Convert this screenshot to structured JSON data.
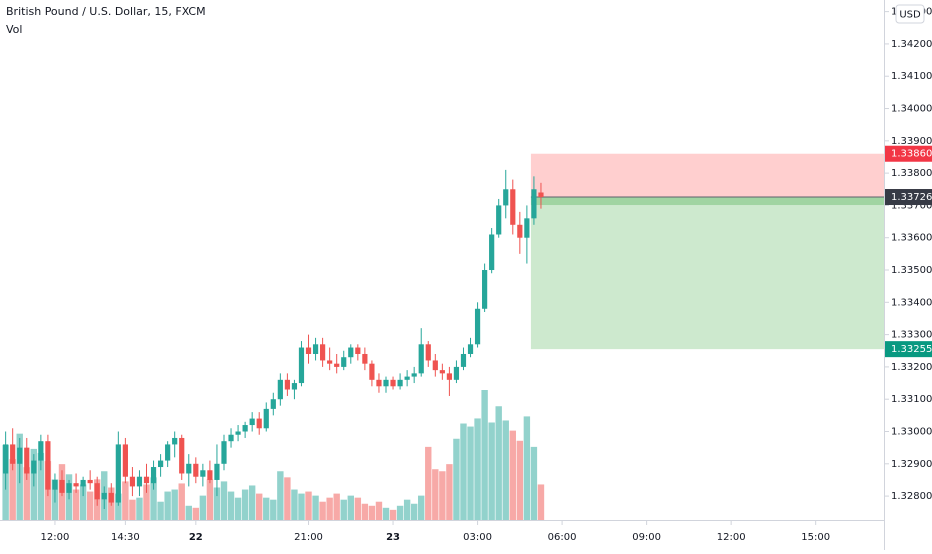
{
  "chart_data": {
    "type": "candlestick",
    "title": "British Pound / U.S. Dollar, 15, FXCM",
    "volume_label": "Vol",
    "currency_button": "USD",
    "up_color": "#26a69a",
    "down_color": "#ef5350",
    "ylim": [
      1.32726,
      1.34336
    ],
    "yticks": [
      {
        "value": 1.328,
        "label": "1.32800"
      },
      {
        "value": 1.329,
        "label": "1.32900"
      },
      {
        "value": 1.33,
        "label": "1.33000"
      },
      {
        "value": 1.331,
        "label": "1.33100"
      },
      {
        "value": 1.332,
        "label": "1.33200"
      },
      {
        "value": 1.333,
        "label": "1.33300"
      },
      {
        "value": 1.334,
        "label": "1.33400"
      },
      {
        "value": 1.335,
        "label": "1.33500"
      },
      {
        "value": 1.336,
        "label": "1.33600"
      },
      {
        "value": 1.337,
        "label": "1.33700"
      },
      {
        "value": 1.338,
        "label": "1.33800"
      },
      {
        "value": 1.339,
        "label": "1.33900"
      },
      {
        "value": 1.34,
        "label": "1.34000"
      },
      {
        "value": 1.341,
        "label": "1.34100"
      },
      {
        "value": 1.342,
        "label": "1.34200"
      },
      {
        "value": 1.343,
        "label": "1.34300"
      }
    ],
    "xlim": [
      -0.8,
      124.7
    ],
    "xticks": [
      {
        "value": 7,
        "label": "12:00"
      },
      {
        "value": 17,
        "label": "14:30"
      },
      {
        "value": 27,
        "label": "22"
      },
      {
        "value": 43,
        "label": "21:00"
      },
      {
        "value": 55,
        "label": "23"
      },
      {
        "value": 67,
        "label": "03:00"
      },
      {
        "value": 79,
        "label": "06:00"
      },
      {
        "value": 91,
        "label": "09:00"
      },
      {
        "value": 103,
        "label": "12:00"
      },
      {
        "value": 115,
        "label": "15:00"
      }
    ],
    "ohlc": [
      [
        1.3287,
        1.33,
        1.3282,
        1.3296
      ],
      [
        1.3296,
        1.3301,
        1.3288,
        1.329
      ],
      [
        1.329,
        1.3298,
        1.3284,
        1.3295
      ],
      [
        1.3295,
        1.3298,
        1.3285,
        1.3287
      ],
      [
        1.3287,
        1.3293,
        1.3283,
        1.3291
      ],
      [
        1.3291,
        1.3299,
        1.3288,
        1.3297
      ],
      [
        1.3297,
        1.3299,
        1.328,
        1.3282
      ],
      [
        1.3282,
        1.3287,
        1.3278,
        1.3285
      ],
      [
        1.3285,
        1.3288,
        1.328,
        1.3281
      ],
      [
        1.3281,
        1.3285,
        1.3279,
        1.3284
      ],
      [
        1.3284,
        1.3287,
        1.3281,
        1.3283
      ],
      [
        1.3283,
        1.3286,
        1.328,
        1.3285
      ],
      [
        1.3285,
        1.3288,
        1.3282,
        1.3284
      ],
      [
        1.3284,
        1.3286,
        1.3277,
        1.3279
      ],
      [
        1.3279,
        1.3283,
        1.3276,
        1.3281
      ],
      [
        1.3281,
        1.3284,
        1.3277,
        1.3278
      ],
      [
        1.3278,
        1.33,
        1.3277,
        1.3296
      ],
      [
        1.3296,
        1.3298,
        1.3284,
        1.3286
      ],
      [
        1.3286,
        1.3289,
        1.328,
        1.3283
      ],
      [
        1.3283,
        1.3288,
        1.328,
        1.3286
      ],
      [
        1.3286,
        1.329,
        1.3281,
        1.3284
      ],
      [
        1.3284,
        1.3291,
        1.3282,
        1.3289
      ],
      [
        1.3289,
        1.3293,
        1.3286,
        1.3291
      ],
      [
        1.3291,
        1.3297,
        1.3289,
        1.3296
      ],
      [
        1.3296,
        1.33,
        1.3292,
        1.3298
      ],
      [
        1.3298,
        1.3299,
        1.3285,
        1.3287
      ],
      [
        1.3287,
        1.3293,
        1.3283,
        1.329
      ],
      [
        1.329,
        1.3292,
        1.3284,
        1.3286
      ],
      [
        1.3286,
        1.329,
        1.3283,
        1.3288
      ],
      [
        1.3288,
        1.3291,
        1.3284,
        1.3285
      ],
      [
        1.3285,
        1.3296,
        1.328,
        1.329
      ],
      [
        1.329,
        1.3299,
        1.3288,
        1.3297
      ],
      [
        1.3297,
        1.3301,
        1.3295,
        1.3299
      ],
      [
        1.3299,
        1.3302,
        1.3297,
        1.33
      ],
      [
        1.33,
        1.3303,
        1.3298,
        1.3302
      ],
      [
        1.3302,
        1.3306,
        1.33,
        1.3304
      ],
      [
        1.3304,
        1.3306,
        1.3299,
        1.3301
      ],
      [
        1.3301,
        1.3309,
        1.33,
        1.3307
      ],
      [
        1.3307,
        1.3312,
        1.3305,
        1.331
      ],
      [
        1.331,
        1.3318,
        1.3308,
        1.3316
      ],
      [
        1.3316,
        1.3318,
        1.3311,
        1.3313
      ],
      [
        1.3313,
        1.3316,
        1.331,
        1.3315
      ],
      [
        1.3315,
        1.3328,
        1.3314,
        1.3326
      ],
      [
        1.3326,
        1.333,
        1.3321,
        1.3324
      ],
      [
        1.3324,
        1.3329,
        1.3322,
        1.3327
      ],
      [
        1.3327,
        1.3329,
        1.332,
        1.3322
      ],
      [
        1.3322,
        1.3326,
        1.3319,
        1.3321
      ],
      [
        1.3321,
        1.3324,
        1.3318,
        1.332
      ],
      [
        1.332,
        1.3325,
        1.3319,
        1.3323
      ],
      [
        1.3323,
        1.3327,
        1.3321,
        1.3326
      ],
      [
        1.3326,
        1.3327,
        1.3322,
        1.3324
      ],
      [
        1.3324,
        1.3326,
        1.3319,
        1.3321
      ],
      [
        1.3321,
        1.3322,
        1.3314,
        1.3316
      ],
      [
        1.3316,
        1.3318,
        1.3312,
        1.3314
      ],
      [
        1.3314,
        1.3317,
        1.3312,
        1.3316
      ],
      [
        1.3316,
        1.3317,
        1.3313,
        1.3314
      ],
      [
        1.3314,
        1.3318,
        1.3313,
        1.3316
      ],
      [
        1.3316,
        1.3319,
        1.3314,
        1.3317
      ],
      [
        1.3317,
        1.332,
        1.3315,
        1.3318
      ],
      [
        1.3318,
        1.3332,
        1.3317,
        1.3327
      ],
      [
        1.3327,
        1.3328,
        1.332,
        1.3322
      ],
      [
        1.3322,
        1.3324,
        1.3317,
        1.3319
      ],
      [
        1.3319,
        1.3321,
        1.3316,
        1.3318
      ],
      [
        1.3318,
        1.332,
        1.3311,
        1.3316
      ],
      [
        1.3316,
        1.3322,
        1.3315,
        1.332
      ],
      [
        1.332,
        1.3326,
        1.3319,
        1.3324
      ],
      [
        1.3324,
        1.3329,
        1.3323,
        1.3327
      ],
      [
        1.3327,
        1.334,
        1.3326,
        1.3338
      ],
      [
        1.3338,
        1.3352,
        1.3337,
        1.335
      ],
      [
        1.335,
        1.3363,
        1.3349,
        1.3361
      ],
      [
        1.3361,
        1.3372,
        1.336,
        1.337
      ],
      [
        1.337,
        1.3381,
        1.3366,
        1.3375
      ],
      [
        1.3375,
        1.3378,
        1.3361,
        1.3364
      ],
      [
        1.3364,
        1.3368,
        1.3355,
        1.336
      ],
      [
        1.336,
        1.337,
        1.3352,
        1.3366
      ],
      [
        1.3366,
        1.3379,
        1.3364,
        1.3375
      ],
      [
        1.3374,
        1.3377,
        1.3369,
        1.33726
      ]
    ],
    "volume": [
      74,
      60,
      85,
      52,
      70,
      66,
      58,
      40,
      55,
      45,
      30,
      35,
      28,
      40,
      48,
      32,
      26,
      38,
      20,
      22,
      35,
      42,
      18,
      28,
      30,
      36,
      14,
      12,
      24,
      40,
      32,
      38,
      28,
      22,
      30,
      34,
      26,
      22,
      20,
      48,
      42,
      30,
      26,
      28,
      24,
      18,
      22,
      26,
      20,
      24,
      22,
      16,
      14,
      18,
      12,
      10,
      14,
      20,
      16,
      24,
      72,
      50,
      48,
      55,
      80,
      95,
      92,
      100,
      128,
      96,
      112,
      98,
      88,
      78,
      102,
      72,
      35
    ],
    "position": {
      "stop": {
        "value": 1.3386,
        "label": "1.33860"
      },
      "entry": {
        "value": 1.33726,
        "label": "1.33726"
      },
      "target": {
        "value": 1.33255,
        "label": "1.33255"
      }
    }
  }
}
